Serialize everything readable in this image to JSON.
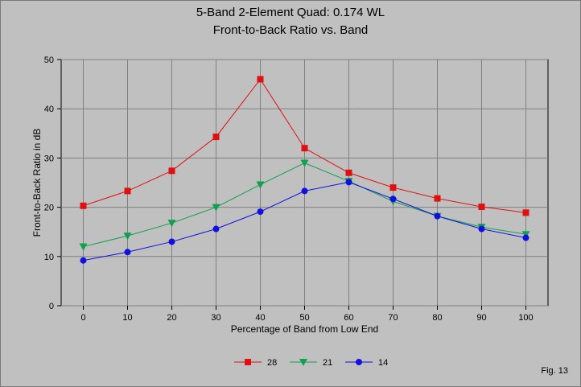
{
  "chart_data": {
    "type": "line",
    "title": [
      "5-Band 2-Element Quad: 0.174 WL",
      "Front-to-Back Ratio vs. Band"
    ],
    "xlabel": "Percentage of Band from Low End",
    "ylabel": "Front-to-Back Ratio in dB",
    "x": [
      0,
      10,
      20,
      30,
      40,
      50,
      60,
      70,
      80,
      90,
      100
    ],
    "xticks": [
      "0",
      "10",
      "20",
      "30",
      "40",
      "50",
      "60",
      "70",
      "80",
      "90",
      "100"
    ],
    "yticks": [
      "0",
      "10",
      "20",
      "30",
      "40",
      "50"
    ],
    "xlim": [
      -5,
      105
    ],
    "ylim": [
      0,
      50
    ],
    "grid": true,
    "legend_position": "bottom-center",
    "series": [
      {
        "name": "28",
        "color": "#e01010",
        "marker": "square",
        "values": [
          20.3,
          23.3,
          27.4,
          34.3,
          46.0,
          32.0,
          27.0,
          24.0,
          21.8,
          20.1,
          18.9
        ]
      },
      {
        "name": "21",
        "color": "#10a050",
        "marker": "triangle-down",
        "values": [
          12.0,
          14.2,
          16.8,
          20.0,
          24.6,
          29.0,
          25.3,
          21.2,
          18.2,
          16.0,
          14.5
        ]
      },
      {
        "name": "14",
        "color": "#1010e0",
        "marker": "circle",
        "values": [
          9.2,
          10.9,
          13.0,
          15.6,
          19.1,
          23.3,
          25.1,
          21.7,
          18.2,
          15.6,
          13.8
        ]
      }
    ]
  },
  "footer": {
    "fig_label": "Fig. 13"
  }
}
